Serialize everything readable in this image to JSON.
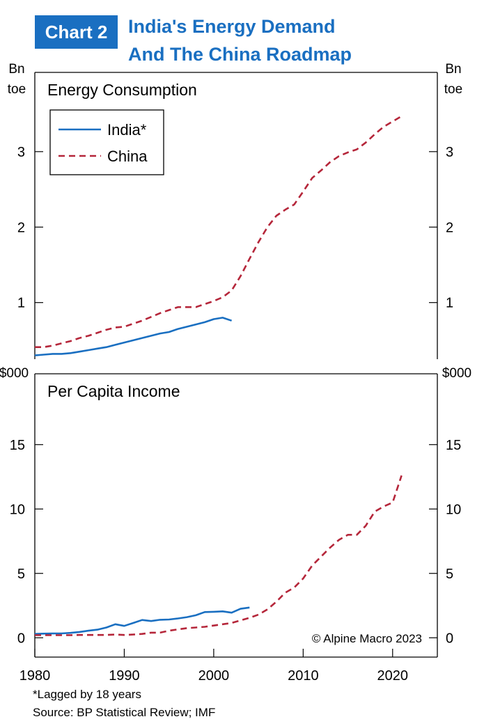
{
  "header": {
    "badge": "Chart 2",
    "title_line1": "India's Energy Demand",
    "title_line2": "And The China Roadmap"
  },
  "colors": {
    "india": "#1a6fc1",
    "china": "#b5263a",
    "accent": "#1a6fc1"
  },
  "chart_data": [
    {
      "type": "line",
      "title": "Energy Consumption",
      "left_unit": [
        "Bn",
        "toe"
      ],
      "right_unit": [
        "Bn",
        "toe"
      ],
      "yticks": [
        "1",
        "2",
        "3"
      ],
      "ytick_values": [
        1,
        2,
        3
      ],
      "ylim": [
        0.25,
        4.05
      ],
      "xlim": [
        1980,
        2025
      ],
      "legend": {
        "placement": "top-left",
        "entries": [
          "India*",
          "China"
        ]
      },
      "series": [
        {
          "name": "India*",
          "style": "solid",
          "x": [
            1980,
            1981,
            1982,
            1983,
            1984,
            1985,
            1986,
            1987,
            1988,
            1989,
            1990,
            1991,
            1992,
            1993,
            1994,
            1995,
            1996,
            1997,
            1998,
            1999,
            2000,
            2001,
            2002
          ],
          "y": [
            0.3,
            0.31,
            0.32,
            0.32,
            0.33,
            0.35,
            0.37,
            0.39,
            0.41,
            0.44,
            0.47,
            0.5,
            0.53,
            0.56,
            0.59,
            0.61,
            0.65,
            0.68,
            0.71,
            0.74,
            0.78,
            0.8,
            0.76
          ]
        },
        {
          "name": "China",
          "style": "dashed",
          "x": [
            1980,
            1981,
            1982,
            1983,
            1984,
            1985,
            1986,
            1987,
            1988,
            1989,
            1990,
            1991,
            1992,
            1993,
            1994,
            1995,
            1996,
            1997,
            1998,
            1999,
            2000,
            2001,
            2002,
            2003,
            2004,
            2005,
            2006,
            2007,
            2008,
            2009,
            2010,
            2011,
            2012,
            2013,
            2014,
            2015,
            2016,
            2017,
            2018,
            2019,
            2020,
            2021
          ],
          "y": [
            0.41,
            0.41,
            0.43,
            0.46,
            0.49,
            0.53,
            0.56,
            0.6,
            0.64,
            0.67,
            0.68,
            0.72,
            0.76,
            0.81,
            0.86,
            0.9,
            0.94,
            0.94,
            0.94,
            0.98,
            1.02,
            1.07,
            1.16,
            1.35,
            1.58,
            1.8,
            2.0,
            2.15,
            2.23,
            2.3,
            2.47,
            2.65,
            2.75,
            2.86,
            2.94,
            2.99,
            3.03,
            3.12,
            3.23,
            3.33,
            3.4,
            3.47
          ]
        }
      ]
    },
    {
      "type": "line",
      "title": "Per Capita Income",
      "left_unit": [
        "$000"
      ],
      "right_unit": [
        "$000"
      ],
      "yticks": [
        "0",
        "5",
        "10",
        "15"
      ],
      "ytick_values": [
        0,
        5,
        10,
        15
      ],
      "ylim": [
        -1.5,
        20.5
      ],
      "xlim": [
        1980,
        2025
      ],
      "xticks": [
        "1980",
        "1990",
        "2000",
        "2010",
        "2020"
      ],
      "xtick_values": [
        1980,
        1990,
        2000,
        2010,
        2020
      ],
      "annotation": "© Alpine Macro 2023",
      "series": [
        {
          "name": "India*",
          "style": "solid",
          "x": [
            1980,
            1981,
            1982,
            1983,
            1984,
            1985,
            1986,
            1987,
            1988,
            1989,
            1990,
            1991,
            1992,
            1993,
            1994,
            1995,
            1996,
            1997,
            1998,
            1999,
            2000,
            2001,
            2002,
            2003,
            2004
          ],
          "y": [
            0.3,
            0.32,
            0.33,
            0.34,
            0.38,
            0.45,
            0.55,
            0.63,
            0.8,
            1.05,
            0.92,
            1.15,
            1.38,
            1.3,
            1.4,
            1.42,
            1.5,
            1.6,
            1.75,
            2.0,
            2.02,
            2.05,
            1.95,
            2.25,
            2.35
          ]
        },
        {
          "name": "China",
          "style": "dashed",
          "x": [
            1980,
            1981,
            1982,
            1983,
            1984,
            1985,
            1986,
            1987,
            1988,
            1989,
            1990,
            1991,
            1992,
            1993,
            1994,
            1995,
            1996,
            1997,
            1998,
            1999,
            2000,
            2001,
            2002,
            2003,
            2004,
            2005,
            2006,
            2007,
            2008,
            2009,
            2010,
            2011,
            2012,
            2013,
            2014,
            2015,
            2016,
            2017,
            2018,
            2019,
            2020,
            2021
          ],
          "y": [
            0.2,
            0.2,
            0.2,
            0.2,
            0.2,
            0.22,
            0.22,
            0.22,
            0.22,
            0.25,
            0.22,
            0.25,
            0.3,
            0.4,
            0.4,
            0.55,
            0.65,
            0.75,
            0.8,
            0.85,
            0.95,
            1.05,
            1.15,
            1.35,
            1.55,
            1.8,
            2.2,
            2.8,
            3.5,
            3.9,
            4.6,
            5.6,
            6.3,
            7.0,
            7.6,
            8.0,
            8.0,
            8.7,
            9.8,
            10.2,
            10.5,
            12.6
          ]
        }
      ]
    }
  ],
  "footnotes": {
    "lag_note": "*Lagged by 18 years",
    "source": "Source: BP Statistical Review; IMF"
  }
}
